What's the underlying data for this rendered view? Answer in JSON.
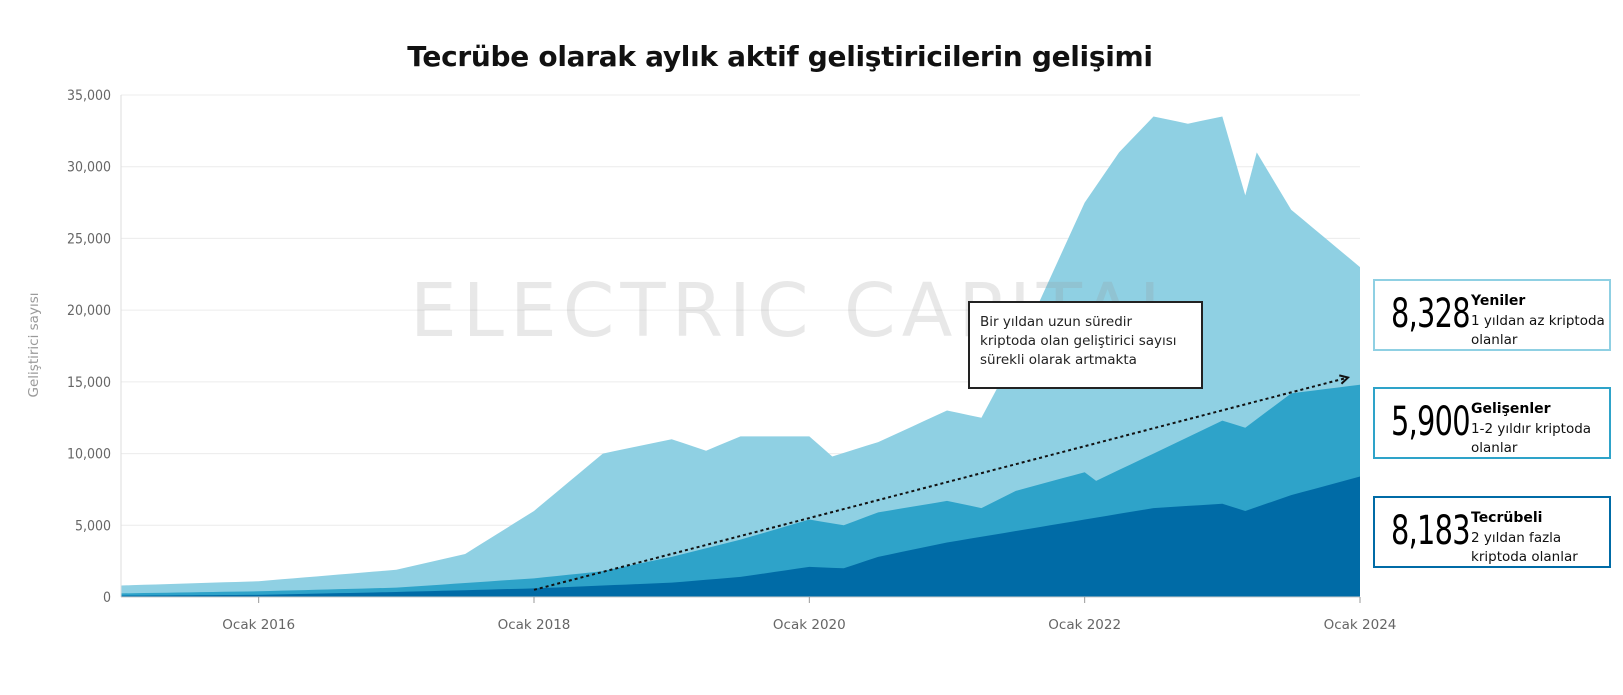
{
  "chart_data": {
    "type": "area",
    "stacked": true,
    "title": "Tecrübe olarak aylık aktif geliştiricilerin gelişimi",
    "ylabel": "Geliştirici sayısı",
    "xlabel": "",
    "ylim": [
      0,
      35000
    ],
    "yticks": [
      0,
      5000,
      10000,
      15000,
      20000,
      25000,
      30000,
      35000
    ],
    "ytick_labels": [
      "0",
      "5,000",
      "10,000",
      "15,000",
      "20,000",
      "25,000",
      "30,000",
      "35,000"
    ],
    "x_start": "2015-01",
    "x_end": "2024-01",
    "xticks": [
      "2016-01",
      "2018-01",
      "2020-01",
      "2022-01",
      "2024-01"
    ],
    "xtick_labels": [
      "Ocak 2016",
      "Ocak 2018",
      "Ocak 2020",
      "Ocak 2022",
      "Ocak 2024"
    ],
    "grid": "horizontal",
    "watermark": "ELECTRIC CAPITAL",
    "series": [
      {
        "name": "Tecrübeli",
        "color": "#006ba6",
        "points": [
          [
            "2015-01",
            100
          ],
          [
            "2016-01",
            150
          ],
          [
            "2017-01",
            350
          ],
          [
            "2018-01",
            600
          ],
          [
            "2018-07",
            800
          ],
          [
            "2019-01",
            1000
          ],
          [
            "2019-07",
            1400
          ],
          [
            "2020-01",
            2100
          ],
          [
            "2020-04",
            2000
          ],
          [
            "2020-07",
            2800
          ],
          [
            "2021-01",
            3800
          ],
          [
            "2021-07",
            4600
          ],
          [
            "2022-01",
            5400
          ],
          [
            "2022-07",
            6200
          ],
          [
            "2023-01",
            6500
          ],
          [
            "2023-03",
            6000
          ],
          [
            "2023-07",
            7100
          ],
          [
            "2024-01",
            8400
          ]
        ]
      },
      {
        "name": "Gelişenler",
        "color": "#2ea3c9",
        "points": [
          [
            "2015-01",
            250
          ],
          [
            "2016-01",
            400
          ],
          [
            "2017-01",
            650
          ],
          [
            "2018-01",
            1300
          ],
          [
            "2018-07",
            1800
          ],
          [
            "2019-01",
            2800
          ],
          [
            "2019-07",
            4000
          ],
          [
            "2020-01",
            5400
          ],
          [
            "2020-04",
            5000
          ],
          [
            "2020-07",
            5900
          ],
          [
            "2021-01",
            6700
          ],
          [
            "2021-04",
            6200
          ],
          [
            "2021-07",
            7400
          ],
          [
            "2022-01",
            8700
          ],
          [
            "2022-02",
            8100
          ],
          [
            "2022-07",
            10000
          ],
          [
            "2023-01",
            12300
          ],
          [
            "2023-03",
            11800
          ],
          [
            "2023-07",
            14200
          ],
          [
            "2024-01",
            14800
          ]
        ]
      },
      {
        "name": "Yeniler",
        "color": "#8fd0e3",
        "points": [
          [
            "2015-01",
            800
          ],
          [
            "2016-01",
            1100
          ],
          [
            "2017-01",
            1900
          ],
          [
            "2017-07",
            3000
          ],
          [
            "2018-01",
            6000
          ],
          [
            "2018-07",
            10000
          ],
          [
            "2019-01",
            11000
          ],
          [
            "2019-04",
            10200
          ],
          [
            "2019-07",
            11200
          ],
          [
            "2020-01",
            11200
          ],
          [
            "2020-03",
            9800
          ],
          [
            "2020-07",
            10800
          ],
          [
            "2021-01",
            13000
          ],
          [
            "2021-04",
            12500
          ],
          [
            "2021-07",
            17000
          ],
          [
            "2022-01",
            27500
          ],
          [
            "2022-04",
            31000
          ],
          [
            "2022-07",
            33500
          ],
          [
            "2022-10",
            33000
          ],
          [
            "2023-01",
            33500
          ],
          [
            "2023-03",
            28000
          ],
          [
            "2023-04",
            31000
          ],
          [
            "2023-07",
            27000
          ],
          [
            "2023-10",
            25000
          ],
          [
            "2024-01",
            23000
          ]
        ]
      }
    ],
    "trend_arrow": {
      "from": [
        "2018-01",
        500
      ],
      "to": [
        "2024-01",
        15300
      ]
    },
    "annotation": "Bir yıldan uzun süredir kriptoda olan geliştirici sayısı sürekli olarak artmakta",
    "legend": [
      {
        "name": "Yeniler",
        "value": "8,328",
        "description": "1 yıldan az kriptoda olanlar",
        "border_color": "#8fd0e3"
      },
      {
        "name": "Gelişenler",
        "value": "5,900",
        "description": "1-2 yıldır kriptoda olanlar",
        "border_color": "#2ea3c9"
      },
      {
        "name": "Tecrübeli",
        "value": "8,183",
        "description": "2 yıldan fazla kriptoda olanlar",
        "border_color": "#006ba6"
      }
    ]
  }
}
